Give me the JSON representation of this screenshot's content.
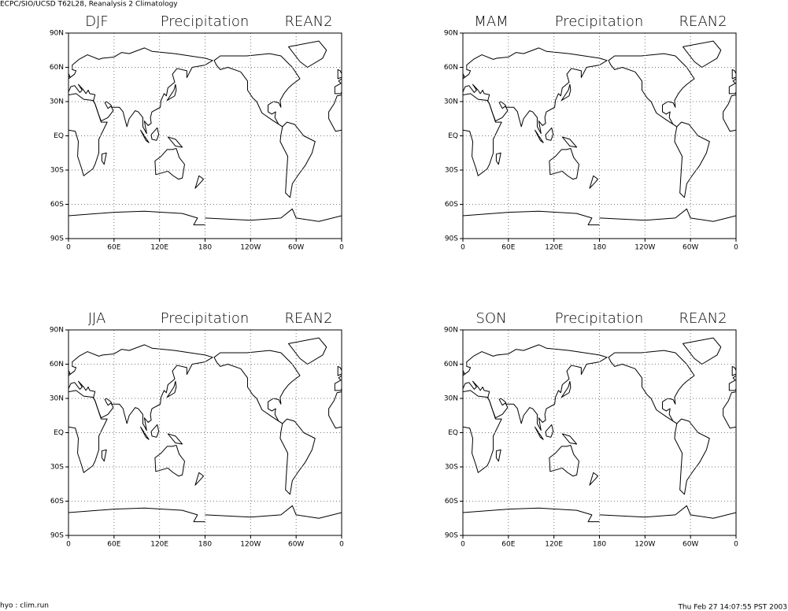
{
  "header": "ECPC/SIO/UCSD T62L28, Reanalysis 2 Climatology",
  "panels": [
    {
      "season": "DJF",
      "variable": "Precipitation",
      "source": "REAN2"
    },
    {
      "season": "MAM",
      "variable": "Precipitation",
      "source": "REAN2"
    },
    {
      "season": "JJA",
      "variable": "Precipitation",
      "source": "REAN2"
    },
    {
      "season": "SON",
      "variable": "Precipitation",
      "source": "REAN2"
    }
  ],
  "lat_labels": [
    "90N",
    "60N",
    "30N",
    "EQ",
    "30S",
    "60S",
    "90S"
  ],
  "lon_labels": [
    "0",
    "60E",
    "120E",
    "180",
    "120W",
    "60W",
    "0"
  ],
  "footer_left": "hyo : clim.run",
  "footer_right": "Thu Feb 27 14:07:55 PST 2003"
}
